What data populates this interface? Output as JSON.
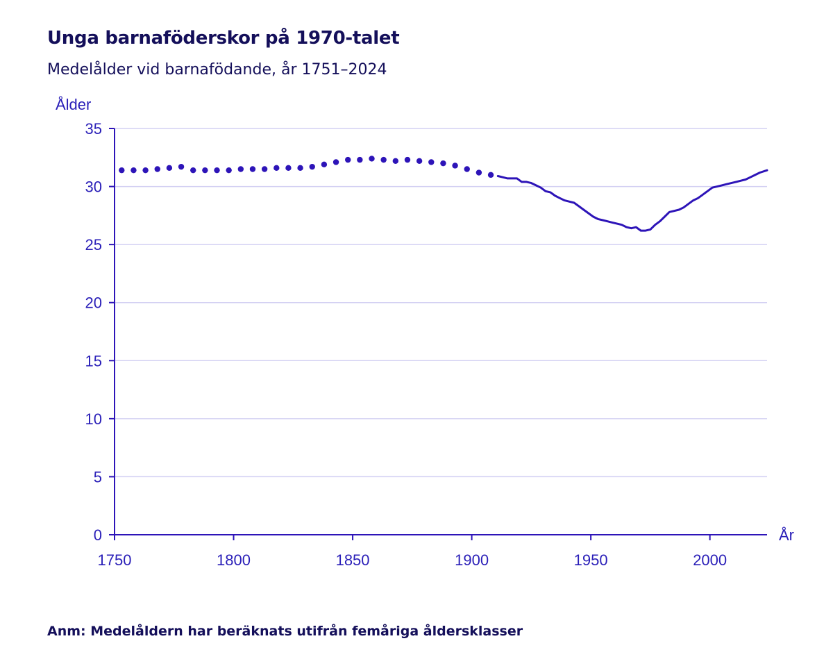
{
  "title": "Unga barnaföderskor på 1970-talet",
  "subtitle": "Medelålder vid barnafödande, år 1751–2024",
  "note": "Anm: Medelåldern har beräknats utifrån femåriga åldersklasser",
  "colors": {
    "line": "#2d14b8",
    "grid": "#d3d0f3",
    "axis": "#2d14b8",
    "text": "#140f5a"
  },
  "chart_data": {
    "type": "line",
    "title": "Unga barnaföderskor på 1970-talet",
    "subtitle": "Medelålder vid barnafödande, år 1751–2024",
    "xlabel": "År",
    "ylabel": "Ålder",
    "xlim": [
      1750,
      2024
    ],
    "ylim": [
      0,
      35
    ],
    "xticks": [
      1750,
      1800,
      1850,
      1900,
      1950,
      2000
    ],
    "yticks": [
      0,
      5,
      10,
      15,
      20,
      25,
      30,
      35
    ],
    "grid": true,
    "series": [
      {
        "style": "dotted",
        "x": [
          1753,
          1758,
          1763,
          1768,
          1773,
          1778,
          1783,
          1788,
          1793,
          1798,
          1803,
          1808,
          1813,
          1818,
          1823,
          1828,
          1833,
          1838,
          1843,
          1848,
          1853,
          1858,
          1863,
          1868,
          1873,
          1878,
          1883,
          1888,
          1893,
          1898,
          1903,
          1908
        ],
        "y": [
          31.4,
          31.4,
          31.4,
          31.5,
          31.6,
          31.7,
          31.4,
          31.4,
          31.4,
          31.4,
          31.5,
          31.5,
          31.5,
          31.6,
          31.6,
          31.6,
          31.7,
          31.9,
          32.1,
          32.3,
          32.3,
          32.4,
          32.3,
          32.2,
          32.3,
          32.2,
          32.1,
          32.0,
          31.8,
          31.5,
          31.2,
          31.0
        ]
      },
      {
        "style": "solid",
        "x": [
          1911,
          1913,
          1915,
          1917,
          1919,
          1921,
          1923,
          1925,
          1927,
          1929,
          1931,
          1933,
          1935,
          1937,
          1939,
          1941,
          1943,
          1945,
          1947,
          1949,
          1951,
          1953,
          1955,
          1957,
          1959,
          1961,
          1963,
          1965,
          1967,
          1969,
          1971,
          1973,
          1975,
          1977,
          1979,
          1981,
          1983,
          1985,
          1987,
          1989,
          1991,
          1993,
          1995,
          1997,
          1999,
          2001,
          2003,
          2005,
          2007,
          2009,
          2011,
          2013,
          2015,
          2017,
          2019,
          2021,
          2024
        ],
        "y": [
          30.9,
          30.8,
          30.7,
          30.7,
          30.7,
          30.4,
          30.4,
          30.3,
          30.1,
          29.9,
          29.6,
          29.5,
          29.2,
          29.0,
          28.8,
          28.7,
          28.6,
          28.3,
          28.0,
          27.7,
          27.4,
          27.2,
          27.1,
          27.0,
          26.9,
          26.8,
          26.7,
          26.5,
          26.4,
          26.5,
          26.2,
          26.2,
          26.3,
          26.7,
          27.0,
          27.4,
          27.8,
          27.9,
          28.0,
          28.2,
          28.5,
          28.8,
          29.0,
          29.3,
          29.6,
          29.9,
          30.0,
          30.1,
          30.2,
          30.3,
          30.4,
          30.5,
          30.6,
          30.8,
          31.0,
          31.2,
          31.4
        ]
      }
    ]
  }
}
